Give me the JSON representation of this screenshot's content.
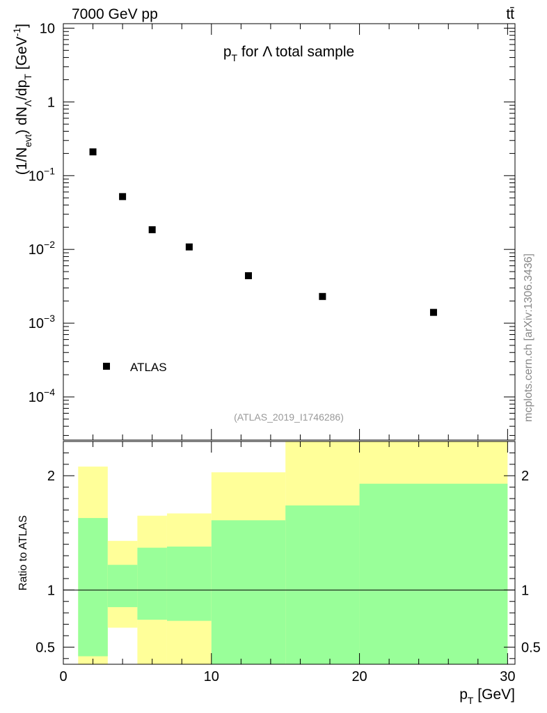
{
  "header": {
    "left_title": "7000 GeV pp",
    "right_title": "tt̄"
  },
  "sidebar": {
    "watermark": "mcplots.cern.ch [arXiv:1306.3436]"
  },
  "chart_data": [
    {
      "type": "scatter",
      "title": "p_T for Λ total sample",
      "title_parts": {
        "main": "p",
        "sub": "T",
        "rest": " for Λ total sample"
      },
      "ylabel": "(1/N_evt) dN_Λ/dp_T [GeV⁻¹]",
      "ylabel_parts": {
        "a": "(1/N",
        "a_sub": "evt",
        "b": ") dN",
        "b_sub": "Λ",
        "c": "/dp",
        "c_sub": "T",
        "d": " [GeV",
        "d_sup": "-1",
        "e": "]"
      },
      "yscale": "log",
      "xlim": [
        0,
        30.5
      ],
      "ylim": [
        2.6e-05,
        11.5
      ],
      "y_ticks": [
        {
          "value": 10,
          "label": "10"
        },
        {
          "value": 1,
          "label": "1"
        },
        {
          "value": 0.1,
          "label": "10",
          "exp": "−1"
        },
        {
          "value": 0.01,
          "label": "10",
          "exp": "−2"
        },
        {
          "value": 0.001,
          "label": "10",
          "exp": "−3"
        },
        {
          "value": 0.0001,
          "label": "10",
          "exp": "−4"
        }
      ],
      "legend": {
        "position": "bottom-left",
        "entries": [
          "ATLAS"
        ]
      },
      "annotation": "(ATLAS_2019_I1746286)",
      "series": [
        {
          "name": "ATLAS",
          "x": [
            2,
            4,
            6,
            8.5,
            12.5,
            17.5,
            25
          ],
          "y": [
            0.21,
            0.052,
            0.0185,
            0.0108,
            0.0044,
            0.0023,
            0.0014
          ],
          "marker": "square",
          "color": "#000000"
        }
      ]
    },
    {
      "type": "area",
      "ylabel": "Ratio to ATLAS",
      "xlabel": "p_T [GeV]",
      "xlabel_parts": {
        "main": "p",
        "sub": "T",
        "rest": " [GeV]"
      },
      "xlim": [
        0,
        30.5
      ],
      "ylim": [
        0.35,
        2.3
      ],
      "x_ticks": [
        0,
        10,
        20,
        30
      ],
      "y_ticks": [
        {
          "value": 0.5,
          "label": "0.5"
        },
        {
          "value": 1,
          "label": "1"
        },
        {
          "value": 2,
          "label": "2"
        }
      ],
      "reference_line": 1,
      "bins": [
        {
          "x_low": 1,
          "x_high": 3,
          "inner": [
            0.42,
            1.63
          ],
          "outer": [
            0.35,
            2.08
          ]
        },
        {
          "x_low": 3,
          "x_high": 5,
          "inner": [
            0.85,
            1.22
          ],
          "outer": [
            0.67,
            1.43
          ]
        },
        {
          "x_low": 5,
          "x_high": 7,
          "inner": [
            0.74,
            1.37
          ],
          "outer": [
            0.35,
            1.65
          ]
        },
        {
          "x_low": 7,
          "x_high": 10,
          "inner": [
            0.73,
            1.38
          ],
          "outer": [
            0.35,
            1.67
          ]
        },
        {
          "x_low": 10,
          "x_high": 15,
          "inner": [
            0.35,
            1.61
          ],
          "outer": [
            0.35,
            2.03
          ]
        },
        {
          "x_low": 15,
          "x_high": 20,
          "inner": [
            0.35,
            1.74
          ],
          "outer": [
            0.35,
            2.3
          ]
        },
        {
          "x_low": 20,
          "x_high": 30,
          "inner": [
            0.35,
            1.93
          ],
          "outer": [
            0.35,
            2.3
          ]
        }
      ],
      "colors": {
        "inner": "#99ff99",
        "outer": "#ffff99"
      }
    }
  ]
}
